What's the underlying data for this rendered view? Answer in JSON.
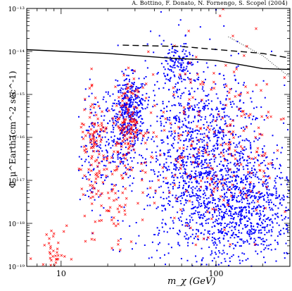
{
  "header": {
    "credit": "A. Bottino, F. Donato, N. Fornengo, S. Scopel (2004)"
  },
  "chart_data": {
    "type": "scatter",
    "title": "",
    "xlabel": "m_χ  (GeV)",
    "ylabel": "Φ_μ^Earth (cm^-2 sec^-1)",
    "xscale": "log",
    "yscale": "log",
    "xlim": [
      6,
      300
    ],
    "ylim": [
      1e-19,
      1e-13
    ],
    "x_tick_labels": [
      {
        "x": 10,
        "label": "10"
      },
      {
        "x": 100,
        "label": "100"
      }
    ],
    "y_tick_labels": [
      {
        "y": 1e-13,
        "label": "10⁻¹³"
      },
      {
        "y": 1e-14,
        "label": "10⁻¹⁴"
      },
      {
        "y": 1e-15,
        "label": "10⁻¹⁵"
      },
      {
        "y": 1e-16,
        "label": "10⁻¹⁶"
      },
      {
        "y": 1e-17,
        "label": "10⁻¹⁷"
      },
      {
        "y": 1e-18,
        "label": "10⁻¹⁸"
      },
      {
        "y": 1e-19,
        "label": "10⁻¹⁹"
      }
    ],
    "grid": false,
    "series": [
      {
        "style": "dots",
        "color": "#0000ff",
        "clusters": [
          {
            "center": [
              16.5,
              4e-17
            ],
            "spread": [
              0.05,
              0.7
            ],
            "count": 110
          },
          {
            "center": [
              25,
              1.5e-16
            ],
            "spread": [
              0.07,
              0.6
            ],
            "count": 260
          },
          {
            "center": [
              28,
              5e-16
            ],
            "spread": [
              0.05,
              0.35
            ],
            "count": 220
          },
          {
            "center": [
              70,
              3e-17
            ],
            "spread": [
              0.18,
              1.2
            ],
            "count": 900
          },
          {
            "center": [
              110,
              1e-17
            ],
            "spread": [
              0.2,
              1.1
            ],
            "count": 700
          },
          {
            "center": [
              160,
              2e-18
            ],
            "spread": [
              0.15,
              0.6
            ],
            "count": 500
          },
          {
            "center": [
              58,
              5e-15
            ],
            "spread": [
              0.05,
              0.25
            ],
            "count": 120
          }
        ]
      },
      {
        "style": "crosses",
        "color": "#ff0000",
        "clusters": [
          {
            "center": [
              16.5,
              6e-17
            ],
            "spread": [
              0.05,
              0.55
            ],
            "count": 90
          },
          {
            "center": [
              20,
              3e-18
            ],
            "spread": [
              0.1,
              0.6
            ],
            "count": 70
          },
          {
            "center": [
              9,
              2e-19
            ],
            "spread": [
              0.06,
              0.4
            ],
            "count": 50
          },
          {
            "center": [
              27,
              2e-16
            ],
            "spread": [
              0.05,
              0.45
            ],
            "count": 140
          },
          {
            "center": [
              100,
              5e-17
            ],
            "spread": [
              0.25,
              1.2
            ],
            "count": 260
          }
        ]
      }
    ],
    "lines": [
      {
        "style": "solid",
        "color": "#000000",
        "points": [
          [
            6,
            1.1e-14
          ],
          [
            20,
            9e-15
          ],
          [
            50,
            7e-15
          ],
          [
            100,
            6.2e-15
          ],
          [
            200,
            4e-15
          ],
          [
            300,
            3.8e-15
          ]
        ]
      },
      {
        "style": "dashed",
        "color": "#000000",
        "points": [
          [
            25,
            1.4e-14
          ],
          [
            60,
            1.3e-14
          ],
          [
            120,
            1.05e-14
          ],
          [
            200,
            9e-15
          ],
          [
            300,
            7e-15
          ]
        ]
      },
      {
        "style": "dotted",
        "color": "#000000",
        "points": [
          [
            120,
            2.2e-14
          ],
          [
            200,
            8e-15
          ],
          [
            300,
            2.5e-15
          ]
        ]
      }
    ]
  }
}
